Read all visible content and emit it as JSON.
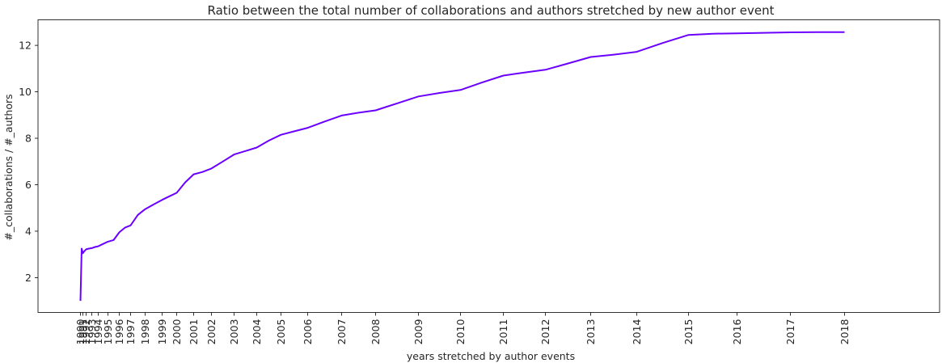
{
  "chart_data": {
    "type": "line",
    "title": "Ratio between the total number of collaborations and authors stretched by new author event",
    "xlabel": "years stretched by author events",
    "ylabel": "#_collaborations / #_authors",
    "ylim": [
      0.5,
      13.1
    ],
    "yticks": [
      2,
      4,
      6,
      8,
      10,
      12
    ],
    "xticks": [
      "1990",
      "1991",
      "1992",
      "1993",
      "1994",
      "1995",
      "1996",
      "1997",
      "1998",
      "1999",
      "2000",
      "2001",
      "2002",
      "2003",
      "2004",
      "2005",
      "2006",
      "2007",
      "2008",
      "2009",
      "2010",
      "2011",
      "2012",
      "2013",
      "2014",
      "2015",
      "2016",
      "2017",
      "2018"
    ],
    "grid": false,
    "line_color": "#6a00ff",
    "series": [
      {
        "x": [
          0,
          0.5,
          1.0,
          1.5,
          2.0,
          2.5,
          3.0,
          3.5,
          4.0,
          4.5,
          5.0,
          5.5,
          6.0,
          6.5,
          7.0,
          7.5,
          8.0,
          8.5,
          9.0,
          9.5,
          10.0,
          10.5,
          11.0,
          11.5,
          12.0,
          12.5,
          13.0,
          13.5,
          14.0,
          14.5,
          15.0,
          15.5,
          16.0,
          16.5,
          17.0,
          17.5,
          18.0,
          18.5,
          19.0,
          19.5,
          20.0,
          20.5,
          21.0,
          21.5,
          22.0,
          22.5,
          23.0,
          23.5,
          24.0,
          24.5,
          25.0,
          25.5,
          26.0,
          26.5,
          27.0,
          27.5,
          28.0
        ],
        "y": [
          1.0,
          3.25,
          3.05,
          3.15,
          3.22,
          3.25,
          3.27,
          3.32,
          3.35,
          3.45,
          3.55,
          3.62,
          3.95,
          4.15,
          4.25,
          4.7,
          4.95,
          5.15,
          5.35,
          5.5,
          5.65,
          6.1,
          6.45,
          6.55,
          6.7,
          7.0,
          7.3,
          7.45,
          7.6,
          7.9,
          8.15,
          8.3,
          8.45,
          8.72,
          8.98,
          9.1,
          9.2,
          9.5,
          9.8,
          9.95,
          10.08,
          10.4,
          10.7,
          10.83,
          10.95,
          11.22,
          11.5,
          11.6,
          11.72,
          12.1,
          12.45,
          12.5,
          12.52,
          12.54,
          12.56,
          12.57,
          12.57
        ]
      }
    ]
  }
}
